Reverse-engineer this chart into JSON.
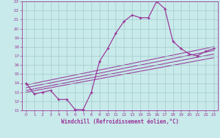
{
  "xlabel": "Windchill (Refroidissement éolien,°C)",
  "bg_color": "#c8eaea",
  "grid_color": "#a0c8c8",
  "line_color": "#993399",
  "xlim": [
    -0.5,
    23.5
  ],
  "ylim": [
    11,
    23
  ],
  "xticks": [
    0,
    1,
    2,
    3,
    4,
    5,
    6,
    7,
    8,
    9,
    10,
    11,
    12,
    13,
    14,
    15,
    16,
    17,
    18,
    19,
    20,
    21,
    22,
    23
  ],
  "yticks": [
    11,
    12,
    13,
    14,
    15,
    16,
    17,
    18,
    19,
    20,
    21,
    22,
    23
  ],
  "main_x": [
    0,
    1,
    2,
    3,
    4,
    5,
    6,
    7,
    8,
    9,
    10,
    11,
    12,
    13,
    14,
    15,
    16,
    17,
    18,
    19,
    20,
    21,
    22,
    23
  ],
  "main_y": [
    14.0,
    12.8,
    13.0,
    13.2,
    12.2,
    12.2,
    11.1,
    11.1,
    13.0,
    16.4,
    17.8,
    19.5,
    20.8,
    21.5,
    21.2,
    21.2,
    23.0,
    22.2,
    18.6,
    17.8,
    17.2,
    17.0,
    17.5,
    17.8
  ],
  "trend_lines": [
    {
      "x": [
        0,
        23
      ],
      "y": [
        13.8,
        18.0
      ]
    },
    {
      "x": [
        0,
        23
      ],
      "y": [
        13.5,
        17.6
      ]
    },
    {
      "x": [
        0,
        23
      ],
      "y": [
        13.2,
        17.2
      ]
    },
    {
      "x": [
        0,
        23
      ],
      "y": [
        13.0,
        16.8
      ]
    }
  ]
}
